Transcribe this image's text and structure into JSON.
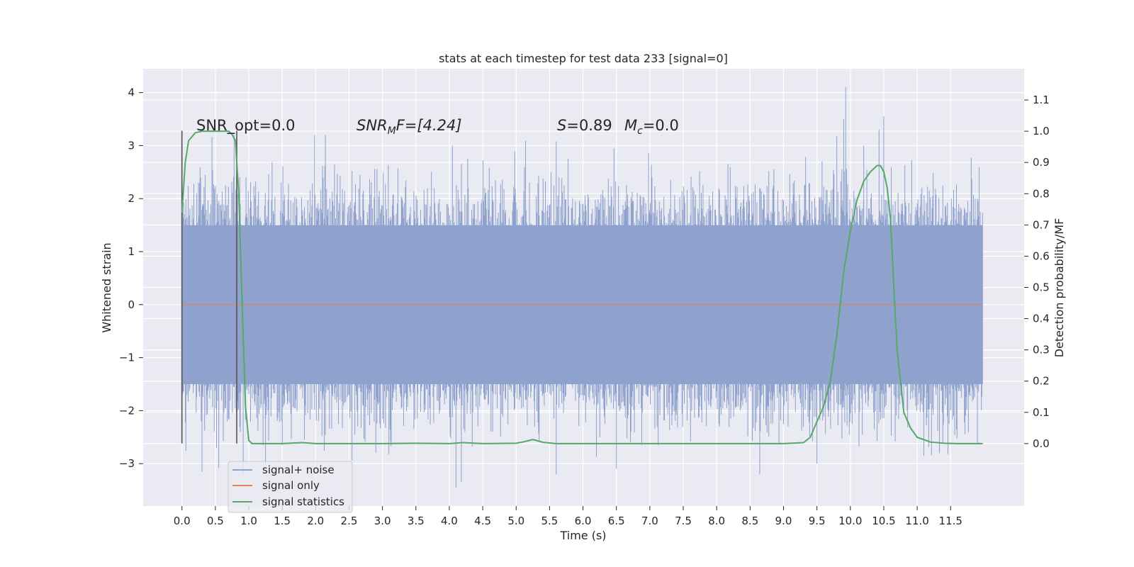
{
  "chart_data": {
    "type": "line",
    "title": "stats at each timestep for test data 233 [signal=0]",
    "xlabel": "Time (s)",
    "ylabel": "Whitened strain",
    "y2label": "Detection probability/MF",
    "xlim": [
      -0.58,
      12.6
    ],
    "ylim": [
      -3.8,
      4.45
    ],
    "y2lim": [
      -0.2,
      1.2
    ],
    "xticks": [
      0.0,
      0.5,
      1.0,
      1.5,
      2.0,
      2.5,
      3.0,
      3.5,
      4.0,
      4.5,
      5.0,
      5.5,
      6.0,
      6.5,
      7.0,
      7.5,
      8.0,
      8.5,
      9.0,
      9.5,
      10.0,
      10.5,
      11.0,
      11.5
    ],
    "xtick_labels": [
      "0.0",
      "0.5",
      "1.0",
      "1.5",
      "2.0",
      "2.5",
      "3.0",
      "3.5",
      "4.0",
      "4.5",
      "5.0",
      "5.5",
      "6.0",
      "6.5",
      "7.0",
      "7.5",
      "8.0",
      "8.5",
      "9.0",
      "9.5",
      "10.0",
      "10.5",
      "11.0",
      "11.5"
    ],
    "yticks": [
      -3,
      -2,
      -1,
      0,
      1,
      2,
      3,
      4
    ],
    "ytick_labels": [
      "−3",
      "−2",
      "−1",
      "0",
      "1",
      "2",
      "3",
      "4"
    ],
    "y2ticks": [
      0.0,
      0.1,
      0.2,
      0.3,
      0.4,
      0.5,
      0.6,
      0.7,
      0.8,
      0.9,
      1.0,
      1.1
    ],
    "y2tick_labels": [
      "0.0",
      "0.1",
      "0.2",
      "0.3",
      "0.4",
      "0.5",
      "0.6",
      "0.7",
      "0.8",
      "0.9",
      "1.0",
      "1.1"
    ],
    "grid": true,
    "legend_position": "lower-left",
    "annotations": {
      "snr_opt": "SNR_opt=0.0",
      "snr_mf_main": "SNR",
      "snr_mf_sub": "M",
      "snr_mf_rest": "F=[4.24]",
      "s_main": "S",
      "s_rest": "=0.89",
      "mc_main": "M",
      "mc_sub": "c",
      "mc_rest": "=0.0"
    },
    "vlines": [
      {
        "x": 0.0,
        "ymin": -2.62,
        "ymax": 3.28,
        "color": "#555555"
      },
      {
        "x": 0.82,
        "ymin": -2.62,
        "ymax": 3.28,
        "color": "#555555"
      }
    ],
    "series": [
      {
        "name": "signal+ noise",
        "color": "#8ea2cd",
        "axis": "left",
        "noise": {
          "t_start": 0.0,
          "t_end": 11.98,
          "envelope": 1.5,
          "max": 4.1,
          "min": -3.45
        }
      },
      {
        "name": "signal only",
        "color": "#dd8452",
        "axis": "left",
        "x": [
          0.0,
          11.98
        ],
        "y": [
          0.0,
          0.0
        ]
      },
      {
        "name": "signal statistics",
        "color": "#55a868",
        "axis": "right",
        "x": [
          0.0,
          0.05,
          0.1,
          0.2,
          0.3,
          0.4,
          0.5,
          0.6,
          0.7,
          0.75,
          0.8,
          0.85,
          0.9,
          0.95,
          1.0,
          1.05,
          1.1,
          1.5,
          1.8,
          2.0,
          3.0,
          3.5,
          4.0,
          4.2,
          4.5,
          5.0,
          5.1,
          5.25,
          5.4,
          5.6,
          6.0,
          7.0,
          8.0,
          9.0,
          9.3,
          9.4,
          9.5,
          9.6,
          9.7,
          9.8,
          9.9,
          10.0,
          10.1,
          10.2,
          10.3,
          10.4,
          10.45,
          10.5,
          10.55,
          10.6,
          10.65,
          10.7,
          10.8,
          10.9,
          11.0,
          11.2,
          11.4,
          11.6,
          11.98
        ],
        "y": [
          0.74,
          0.9,
          0.97,
          0.995,
          1.0,
          1.0,
          1.0,
          1.0,
          1.0,
          0.99,
          0.97,
          0.8,
          0.45,
          0.12,
          0.01,
          0.0,
          0.0,
          0.0,
          0.003,
          0.0,
          0.0,
          0.001,
          0.0,
          0.003,
          0.0,
          0.001,
          0.005,
          0.013,
          0.004,
          0.0,
          0.0,
          0.0,
          0.0,
          0.0,
          0.003,
          0.02,
          0.07,
          0.12,
          0.2,
          0.35,
          0.55,
          0.68,
          0.78,
          0.84,
          0.87,
          0.89,
          0.89,
          0.87,
          0.82,
          0.72,
          0.5,
          0.3,
          0.1,
          0.05,
          0.02,
          0.005,
          0.001,
          0.0,
          0.0
        ]
      }
    ]
  }
}
